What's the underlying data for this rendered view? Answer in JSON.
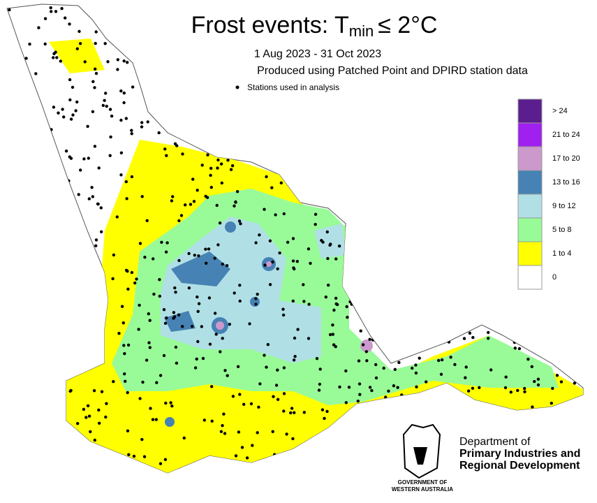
{
  "title": {
    "prefix": "Frost events:  T",
    "subscript": "min",
    "suffix": "≤  2°C"
  },
  "period": "1 Aug 2023 - 31 Oct 2023",
  "source": "Produced using Patched Point and DPIRD station data",
  "stations_legend": "Stations used in analysis",
  "legend": {
    "classes": [
      {
        "label": "> 24",
        "color": "#5b1e8e"
      },
      {
        "label": "21 to 24",
        "color": "#a020f0"
      },
      {
        "label": "17 to 20",
        "color": "#cc99cc"
      },
      {
        "label": "13 to 16",
        "color": "#4682b4"
      },
      {
        "label": "9 to 12",
        "color": "#b0e0e6"
      },
      {
        "label": "5 to 8",
        "color": "#98fb98"
      },
      {
        "label": "1 to 4",
        "color": "#ffff00"
      },
      {
        "label": "0",
        "color": "#ffffff"
      }
    ]
  },
  "logo": {
    "line1": "Department of",
    "line2": "Primary Industries and",
    "line3": "Regional Development",
    "gov1": "GOVERNMENT OF",
    "gov2": "WESTERN AUSTRALIA"
  }
}
